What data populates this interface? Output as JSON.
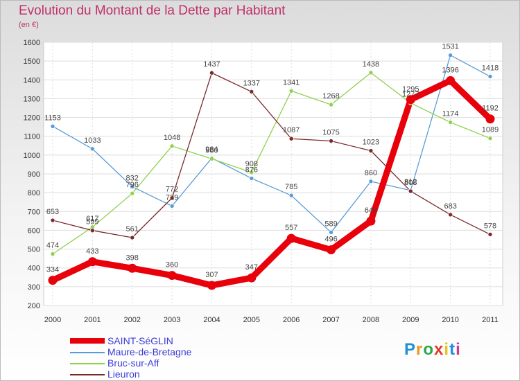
{
  "title": "Evolution du Montant de la Dette par Habitant",
  "unit": "(en €)",
  "logo": {
    "text": "Proxiti",
    "letter_colors": [
      "#1f8fd6",
      "#e89a1a",
      "#2aa84a",
      "#e03a2a",
      "#e8c21a",
      "#1f8fd6",
      "#d43a8a"
    ]
  },
  "chart_data": {
    "type": "line",
    "x": [
      "2000",
      "2001",
      "2002",
      "2003",
      "2004",
      "2005",
      "2006",
      "2007",
      "2008",
      "2009",
      "2010",
      "2011"
    ],
    "ylim": [
      200,
      1600
    ],
    "yticks": [
      200,
      300,
      400,
      500,
      600,
      700,
      800,
      900,
      1000,
      1100,
      1200,
      1300,
      1400,
      1500,
      1600
    ],
    "grid": true,
    "legend_position": "bottom-left",
    "series": [
      {
        "name": "SAINT-SéGLIN",
        "color": "#e8000b",
        "values": [
          334,
          433,
          398,
          360,
          307,
          347,
          557,
          496,
          649,
          1295,
          1396,
          1192
        ]
      },
      {
        "name": "Maure-de-Bretagne",
        "color": "#5b9bd5",
        "values": [
          1153,
          1033,
          832,
          729,
          984,
          876,
          785,
          589,
          860,
          812,
          1531,
          1418
        ]
      },
      {
        "name": "Bruc-sur-Aff",
        "color": "#8fd14f",
        "values": [
          474,
          617,
          796,
          1048,
          980,
          908,
          1341,
          1268,
          1438,
          1277,
          1174,
          1089
        ]
      },
      {
        "name": "Lieuron",
        "color": "#7a2a2a",
        "values": [
          653,
          599,
          561,
          772,
          1437,
          1337,
          1087,
          1075,
          1023,
          808,
          683,
          578
        ]
      }
    ]
  }
}
